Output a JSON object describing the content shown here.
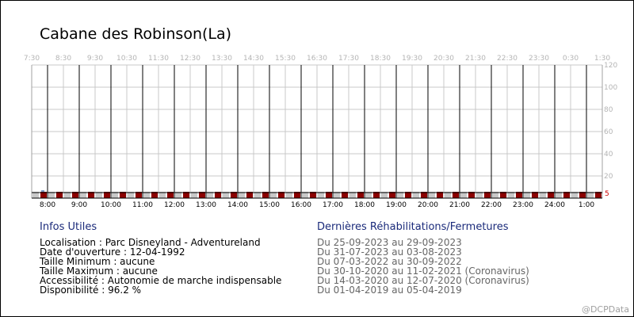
{
  "title": "Cabane des Robinson(La)",
  "chart_data": {
    "type": "bar",
    "ylim": [
      0,
      120
    ],
    "y_ticks": [
      "120",
      "100",
      "80",
      "60",
      "40",
      "20"
    ],
    "threshold_label": "5",
    "threshold_value": 5,
    "top_ticks": [
      "7:30",
      "8:30",
      "9:30",
      "10:30",
      "11:30",
      "12:30",
      "13:30",
      "14:30",
      "15:30",
      "16:30",
      "17:30",
      "18:30",
      "19:30",
      "20:30",
      "21:30",
      "22:30",
      "23:30",
      "0:30",
      "1:30"
    ],
    "bottom_ticks": [
      "8:00",
      "9:00",
      "10:00",
      "11:00",
      "12:00",
      "13:00",
      "14:00",
      "15:00",
      "16:00",
      "17:00",
      "18:00",
      "19:00",
      "20:00",
      "21:00",
      "22:00",
      "23:00",
      "24:00",
      "1:00"
    ],
    "grid": true,
    "colors": {
      "closed": "#8b0000",
      "gap": "#c8c8c8",
      "open": "#7a9cc8",
      "threshold": "#cc0000",
      "grid": "#c8c8c8",
      "hour_line": "#000000"
    }
  },
  "infos": {
    "heading": "Infos Utiles",
    "lines": [
      "Localisation : Parc Disneyland - Adventureland",
      "Date d'ouverture : 12-04-1992",
      "Taille Minimum : aucune",
      "Taille Maximum : aucune",
      "Accessibilité : Autonomie de marche indispensable",
      "Disponibilité : 96.2 %"
    ]
  },
  "rehab": {
    "heading": "Dernières Réhabilitations/Fermetures",
    "lines": [
      "Du 25-09-2023 au 29-09-2023",
      "Du 31-07-2023 au 03-08-2023",
      "Du 07-03-2022 au 30-09-2022",
      "Du 30-10-2020 au 11-02-2021 (Coronavirus)",
      "Du 14-03-2020 au 12-07-2020 (Coronavirus)",
      "Du 01-04-2019 au 05-04-2019"
    ]
  },
  "watermark": "@DCPData"
}
